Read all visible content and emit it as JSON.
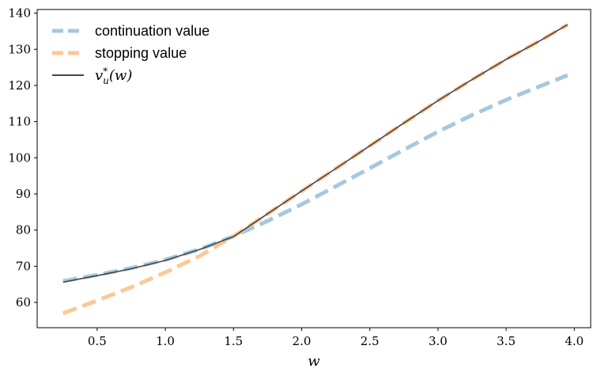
{
  "chart_data": {
    "type": "line",
    "title": "",
    "xlabel": "w",
    "ylabel": "",
    "xlim": [
      0.06,
      4.12
    ],
    "ylim": [
      53,
      141
    ],
    "x_ticks": [
      0.5,
      1.0,
      1.5,
      2.0,
      2.5,
      3.0,
      3.5,
      4.0
    ],
    "x_tick_labels": [
      "0.5",
      "1.0",
      "1.5",
      "2.0",
      "2.5",
      "3.0",
      "3.5",
      "4.0"
    ],
    "y_ticks": [
      60,
      70,
      80,
      90,
      100,
      110,
      120,
      130,
      140
    ],
    "y_tick_labels": [
      "60",
      "70",
      "80",
      "90",
      "100",
      "110",
      "120",
      "130",
      "140"
    ],
    "grid": false,
    "legend_position": "top-left",
    "series": [
      {
        "name": "continuation value",
        "color": "#a6c8de",
        "style": "dashed",
        "x": [
          0.25,
          0.5,
          0.75,
          1.0,
          1.25,
          1.5,
          1.75,
          2.0,
          2.25,
          2.5,
          2.75,
          3.0,
          3.25,
          3.5,
          3.75,
          3.95
        ],
        "y": [
          65.9,
          67.6,
          69.5,
          71.8,
          74.7,
          78.3,
          82.5,
          87.1,
          92.1,
          97.1,
          102.2,
          107.2,
          111.8,
          116.0,
          119.8,
          122.8
        ]
      },
      {
        "name": "stopping value",
        "color": "#fdc897",
        "style": "dashed",
        "x": [
          0.25,
          0.5,
          0.75,
          1.0,
          1.25,
          1.5,
          1.75,
          2.0,
          2.25,
          2.5,
          2.75,
          3.0,
          3.25,
          3.5,
          3.75,
          3.95
        ],
        "y": [
          57.0,
          60.5,
          64.2,
          68.3,
          72.8,
          78.3,
          84.5,
          90.8,
          97.0,
          103.3,
          109.6,
          115.8,
          121.6,
          127.2,
          132.4,
          136.8
        ]
      },
      {
        "name": "v*u(w)",
        "color": "#444444",
        "style": "solid",
        "x": [
          0.25,
          0.5,
          0.75,
          1.0,
          1.25,
          1.5,
          1.75,
          2.0,
          2.25,
          2.5,
          2.75,
          3.0,
          3.25,
          3.5,
          3.75,
          3.95
        ],
        "y": [
          65.6,
          67.4,
          69.3,
          71.6,
          74.6,
          78.2,
          84.5,
          90.8,
          97.0,
          103.3,
          109.6,
          115.8,
          121.6,
          127.2,
          132.4,
          136.8
        ]
      }
    ],
    "legend": [
      {
        "label": "continuation value"
      },
      {
        "label": "stopping value"
      },
      {
        "label_main": "v",
        "label_sup": "*",
        "label_sub": "u",
        "label_tail": "(w)"
      }
    ]
  }
}
